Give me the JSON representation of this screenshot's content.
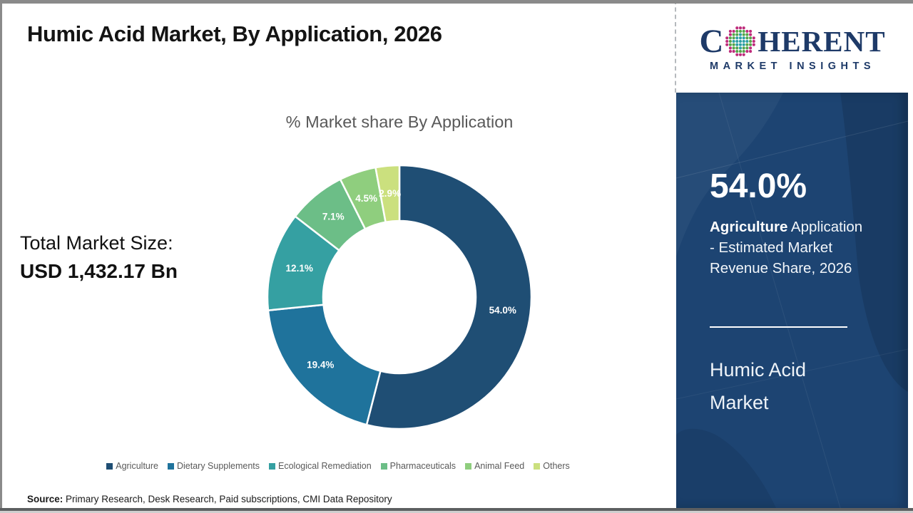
{
  "header": {
    "title": "Humic Acid Market, By Application, 2026"
  },
  "logo": {
    "word_start": "C",
    "word_end": "HERENT",
    "subtitle": "MARKET INSIGHTS",
    "text_color": "#1e3a68",
    "sphere_colors": {
      "center": "#2d9fa5",
      "mid": "#55a54b",
      "outer": "#be2b7b"
    }
  },
  "left_panel": {
    "total_label": "Total Market Size:",
    "total_value": "USD 1,432.17 Bn"
  },
  "chart_data": {
    "type": "pie",
    "subtype": "donut",
    "title": "% Market share By Application",
    "categories": [
      "Agriculture",
      "Dietary Supplements",
      "Ecological Remediation",
      "Pharmaceuticals",
      "Animal Feed",
      "Others"
    ],
    "values": [
      54.0,
      19.4,
      12.1,
      7.1,
      4.5,
      2.9
    ],
    "labels": [
      "54.0%",
      "19.4%",
      "12.1%",
      "7.1%",
      "4.5%",
      "2.9%"
    ],
    "colors": [
      "#1F4E74",
      "#1F739C",
      "#35A0A2",
      "#6CBE87",
      "#8FCE7E",
      "#CBE07E"
    ],
    "start_angle_deg": 0,
    "direction": "clockwise",
    "inner_radius_ratio": 0.58,
    "label_color": "#FFFFFF",
    "legend_position": "bottom"
  },
  "sidebar": {
    "highlight_value": "54.0%",
    "highlight_app": "Agriculture",
    "highlight_rest": " Application - Estimated Market Revenue Share, 2026",
    "panel_title": "Humic Acid Market",
    "bg_color": "#1d4472"
  },
  "footer": {
    "source_label": "Source:",
    "source_text": " Primary Research, Desk Research, Paid subscriptions, CMI Data Repository"
  }
}
